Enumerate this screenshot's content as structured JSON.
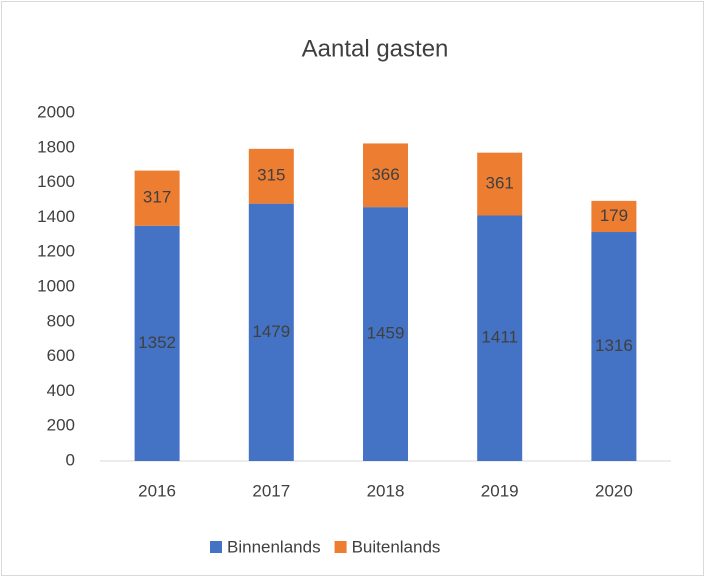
{
  "chart_data": {
    "type": "bar",
    "stacked": true,
    "title": "Aantal gasten",
    "categories": [
      "2016",
      "2017",
      "2018",
      "2019",
      "2020"
    ],
    "series": [
      {
        "name": "Binnenlands",
        "color": "#4472c4",
        "values": [
          1352,
          1479,
          1459,
          1411,
          1316
        ]
      },
      {
        "name": "Buitenlands",
        "color": "#ed7d31",
        "values": [
          317,
          315,
          366,
          361,
          179
        ]
      }
    ],
    "ylim": [
      0,
      2000
    ],
    "yticks": [
      0,
      200,
      400,
      600,
      800,
      1000,
      1200,
      1400,
      1600,
      1800,
      2000
    ],
    "grid": false,
    "legend": "bottom"
  }
}
